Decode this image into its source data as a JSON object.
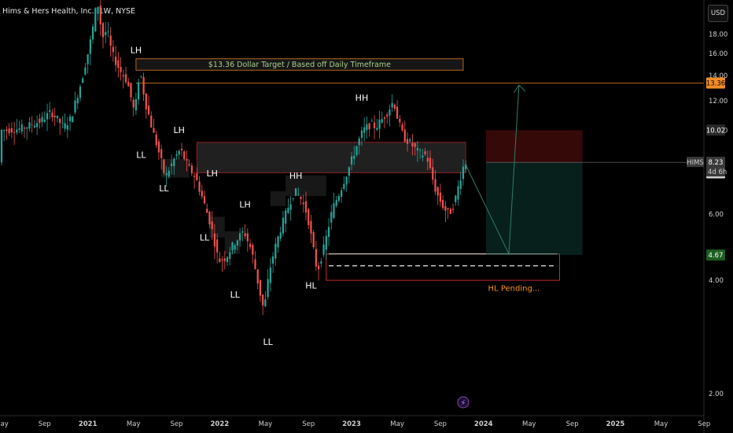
{
  "header": {
    "symbol_title": "Hims & Hers Health, Inc., 1W, NYSE"
  },
  "currency_button": {
    "label": "USD"
  },
  "colors": {
    "up": "#26a69a",
    "down": "#ef5350",
    "target_line": "#b5651d"
  },
  "chart_data": {
    "type": "candlestick",
    "ylim": [
      1.8,
      22.2
    ],
    "y_ticks": [
      "2.00",
      "4.00",
      "6.00",
      "8.00",
      "10.00",
      "12.00",
      "14.00",
      "16.00",
      "18.00",
      "20.00"
    ],
    "y_tick_values": [
      2,
      4,
      6,
      8,
      10,
      12,
      14,
      16,
      18,
      20
    ],
    "x_ticks": [
      "May",
      "Sep",
      "2021",
      "May",
      "Sep",
      "2022",
      "May",
      "Sep",
      "2023",
      "May",
      "Sep",
      "2024",
      "May",
      "Sep",
      "2025",
      "May",
      "Sep"
    ],
    "x_tick_index": [
      0,
      17,
      34,
      52,
      69,
      86,
      104,
      121,
      138,
      156,
      173,
      190,
      208,
      225,
      242,
      260,
      277
    ],
    "price_path": [
      [
        0,
        10.0
      ],
      [
        8,
        10.1
      ],
      [
        16,
        10.6
      ],
      [
        20,
        11.2
      ],
      [
        25,
        10.2
      ],
      [
        28,
        10.8
      ],
      [
        32,
        13.5
      ],
      [
        35,
        16.5
      ],
      [
        37,
        19.5
      ],
      [
        38,
        22.0
      ],
      [
        39,
        21.0
      ],
      [
        40,
        17.5
      ],
      [
        42,
        18.5
      ],
      [
        44,
        16.0
      ],
      [
        47,
        14.5
      ],
      [
        50,
        13.5
      ],
      [
        53,
        11.0
      ],
      [
        55,
        14.5
      ],
      [
        57,
        12.0
      ],
      [
        60,
        10.0
      ],
      [
        63,
        8.5
      ],
      [
        65,
        7.5
      ],
      [
        67,
        8.0
      ],
      [
        69,
        8.5
      ],
      [
        71,
        8.9
      ],
      [
        74,
        8.0
      ],
      [
        77,
        7.5
      ],
      [
        80,
        6.5
      ],
      [
        83,
        5.6
      ],
      [
        86,
        4.5
      ],
      [
        89,
        4.6
      ],
      [
        92,
        5.0
      ],
      [
        96,
        5.4
      ],
      [
        99,
        4.8
      ],
      [
        102,
        3.8
      ],
      [
        104,
        3.3
      ],
      [
        106,
        4.2
      ],
      [
        108,
        4.8
      ],
      [
        111,
        5.6
      ],
      [
        114,
        6.4
      ],
      [
        116,
        6.9
      ],
      [
        118,
        6.7
      ],
      [
        121,
        6.0
      ],
      [
        123,
        5.0
      ],
      [
        125,
        4.2
      ],
      [
        128,
        5.0
      ],
      [
        131,
        6.2
      ],
      [
        134,
        6.9
      ],
      [
        137,
        7.8
      ],
      [
        140,
        8.9
      ],
      [
        143,
        10.0
      ],
      [
        146,
        10.4
      ],
      [
        148,
        10.2
      ],
      [
        151,
        10.8
      ],
      [
        153,
        11.3
      ],
      [
        155,
        12.0
      ],
      [
        157,
        10.5
      ],
      [
        159,
        9.6
      ],
      [
        162,
        9.2
      ],
      [
        165,
        8.7
      ],
      [
        168,
        8.6
      ],
      [
        170,
        7.6
      ],
      [
        172,
        6.8
      ],
      [
        175,
        6.2
      ],
      [
        177,
        6.0
      ],
      [
        179,
        6.4
      ],
      [
        181,
        7.3
      ],
      [
        183,
        8.23
      ]
    ],
    "current_price": "8.23",
    "current_countdown": "4d 6h",
    "price_tags": [
      {
        "value": 13.36,
        "label": "13.36",
        "bg": "#f28c28",
        "fg": "#000000"
      },
      {
        "value": 10.02,
        "label": "10.02",
        "bg": "#2a2a2a",
        "fg": "#ffffff"
      },
      {
        "value": 8.23,
        "label": "8.23",
        "bg": "#3a3a3a",
        "fg": "#ffffff"
      },
      {
        "value": 7.72,
        "label": "8.22",
        "bg": "#d9d9d9",
        "fg": "#000000"
      },
      {
        "value": 4.67,
        "label": "4.67",
        "bg": "#1b5e20",
        "fg": "#ffffff"
      }
    ],
    "ticker_label": "HIMS",
    "annotations": {
      "target_text": "$13.36 Dollar Target / Based off Daily Timeframe",
      "hl_pending": "HL Pending...",
      "swing_labels": [
        {
          "text": "LH",
          "i": 53,
          "v": 16.05
        },
        {
          "text": "LL",
          "i": 55,
          "v": 8.45
        },
        {
          "text": "LH",
          "i": 70,
          "v": 9.85
        },
        {
          "text": "LL",
          "i": 64,
          "v": 6.9
        },
        {
          "text": "LH",
          "i": 83,
          "v": 7.55
        },
        {
          "text": "LL",
          "i": 80,
          "v": 5.1
        },
        {
          "text": "LH",
          "i": 96,
          "v": 6.25
        },
        {
          "text": "LL",
          "i": 92,
          "v": 3.6
        },
        {
          "text": "LL",
          "i": 105,
          "v": 2.7
        },
        {
          "text": "HH",
          "i": 116,
          "v": 7.45
        },
        {
          "text": "HL",
          "i": 122,
          "v": 3.8
        },
        {
          "text": "HH",
          "i": 142,
          "v": 12.0
        }
      ]
    }
  }
}
